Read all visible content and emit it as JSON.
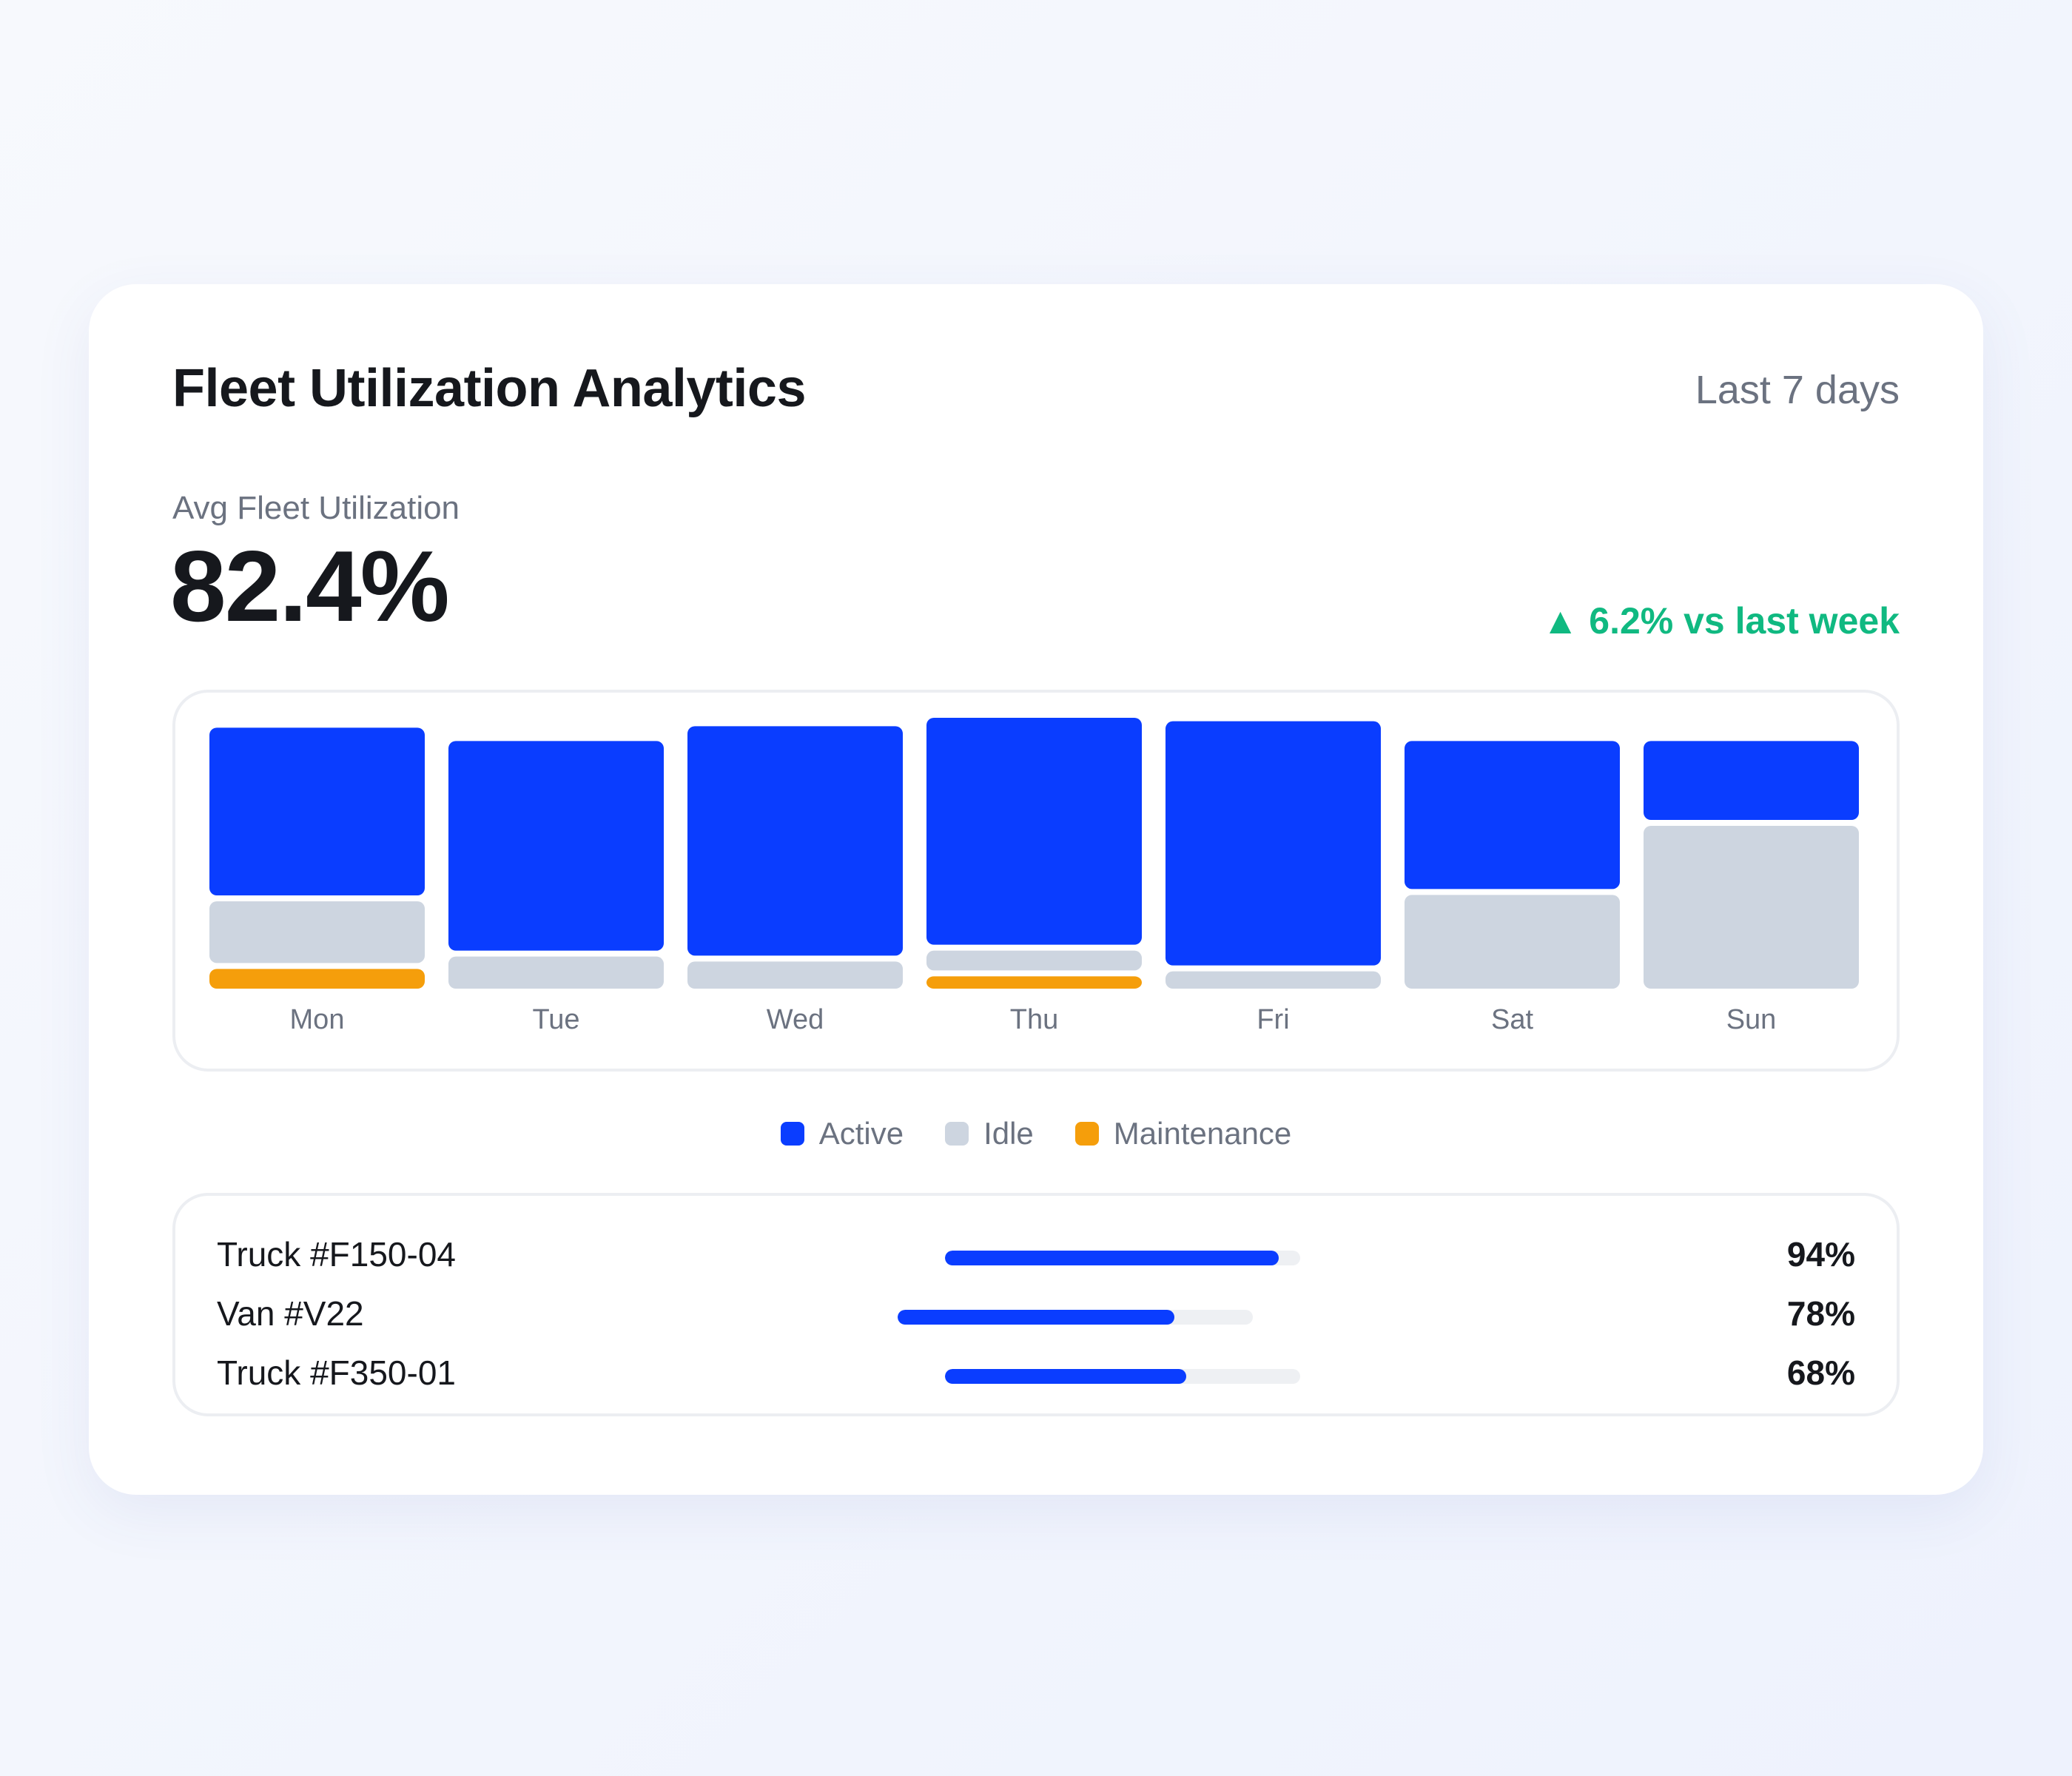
{
  "header": {
    "title": "Fleet Utilization Analytics",
    "range_label": "Last 7 days"
  },
  "kpi": {
    "label": "Avg Fleet Utilization",
    "value": "82.4%",
    "delta": "▲ 6.2% vs last week"
  },
  "colors": {
    "active": "#0a3dff",
    "idle": "#cdd5e0",
    "maintenance": "#f59e0b",
    "positive": "#10b981"
  },
  "chart_data": {
    "type": "bar",
    "stacked": true,
    "categories": [
      "Mon",
      "Tue",
      "Wed",
      "Thu",
      "Fri",
      "Sat",
      "Sun"
    ],
    "series": [
      {
        "name": "Active",
        "values": [
          68,
          85,
          93,
          92,
          99,
          60,
          32
        ]
      },
      {
        "name": "Idle",
        "values": [
          25,
          13,
          11,
          8,
          7,
          38,
          66
        ]
      },
      {
        "name": "Maintenance",
        "values": [
          8,
          0,
          0,
          5,
          0,
          0,
          0
        ]
      }
    ],
    "ylim": [
      0,
      102
    ],
    "grid": false,
    "legend": "bottom-center"
  },
  "legend": [
    {
      "label": "Active",
      "color": "#0a3dff"
    },
    {
      "label": "Idle",
      "color": "#cdd5e0"
    },
    {
      "label": "Maintenance",
      "color": "#f59e0b"
    }
  ],
  "vehicles": [
    {
      "name": "Truck #F150-04",
      "utilization": 94,
      "label": "94%"
    },
    {
      "name": "Van #V22",
      "utilization": 78,
      "label": "78%"
    },
    {
      "name": "Truck #F350-01",
      "utilization": 68,
      "label": "68%"
    }
  ]
}
